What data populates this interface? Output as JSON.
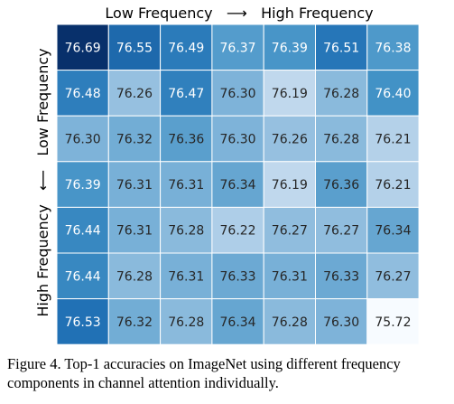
{
  "chart_data": {
    "type": "heatmap",
    "xlabel": "Low Frequency   ⟶   High Frequency",
    "ylabel": "High Frequency   ⟵   Low Frequency",
    "rows": [
      [
        76.69,
        76.55,
        76.49,
        76.37,
        76.39,
        76.51,
        76.38
      ],
      [
        76.48,
        76.26,
        76.47,
        76.3,
        76.19,
        76.28,
        76.4
      ],
      [
        76.3,
        76.32,
        76.36,
        76.3,
        76.26,
        76.28,
        76.21
      ],
      [
        76.39,
        76.31,
        76.31,
        76.34,
        76.19,
        76.36,
        76.21
      ],
      [
        76.44,
        76.31,
        76.28,
        76.22,
        76.27,
        76.27,
        76.34
      ],
      [
        76.44,
        76.28,
        76.31,
        76.33,
        76.31,
        76.33,
        76.27
      ],
      [
        76.53,
        76.32,
        76.28,
        76.34,
        76.28,
        76.3,
        75.72
      ]
    ],
    "colormap": "Blues",
    "colors": {
      "light": "#f7fbff",
      "pale": "#c6dbef",
      "mid": "#4292c6",
      "strong": "#2171b5",
      "dark": "#08306b"
    }
  },
  "caption": "Figure 4. Top-1 accuracies on ImageNet using different frequency components in channel attention individually."
}
